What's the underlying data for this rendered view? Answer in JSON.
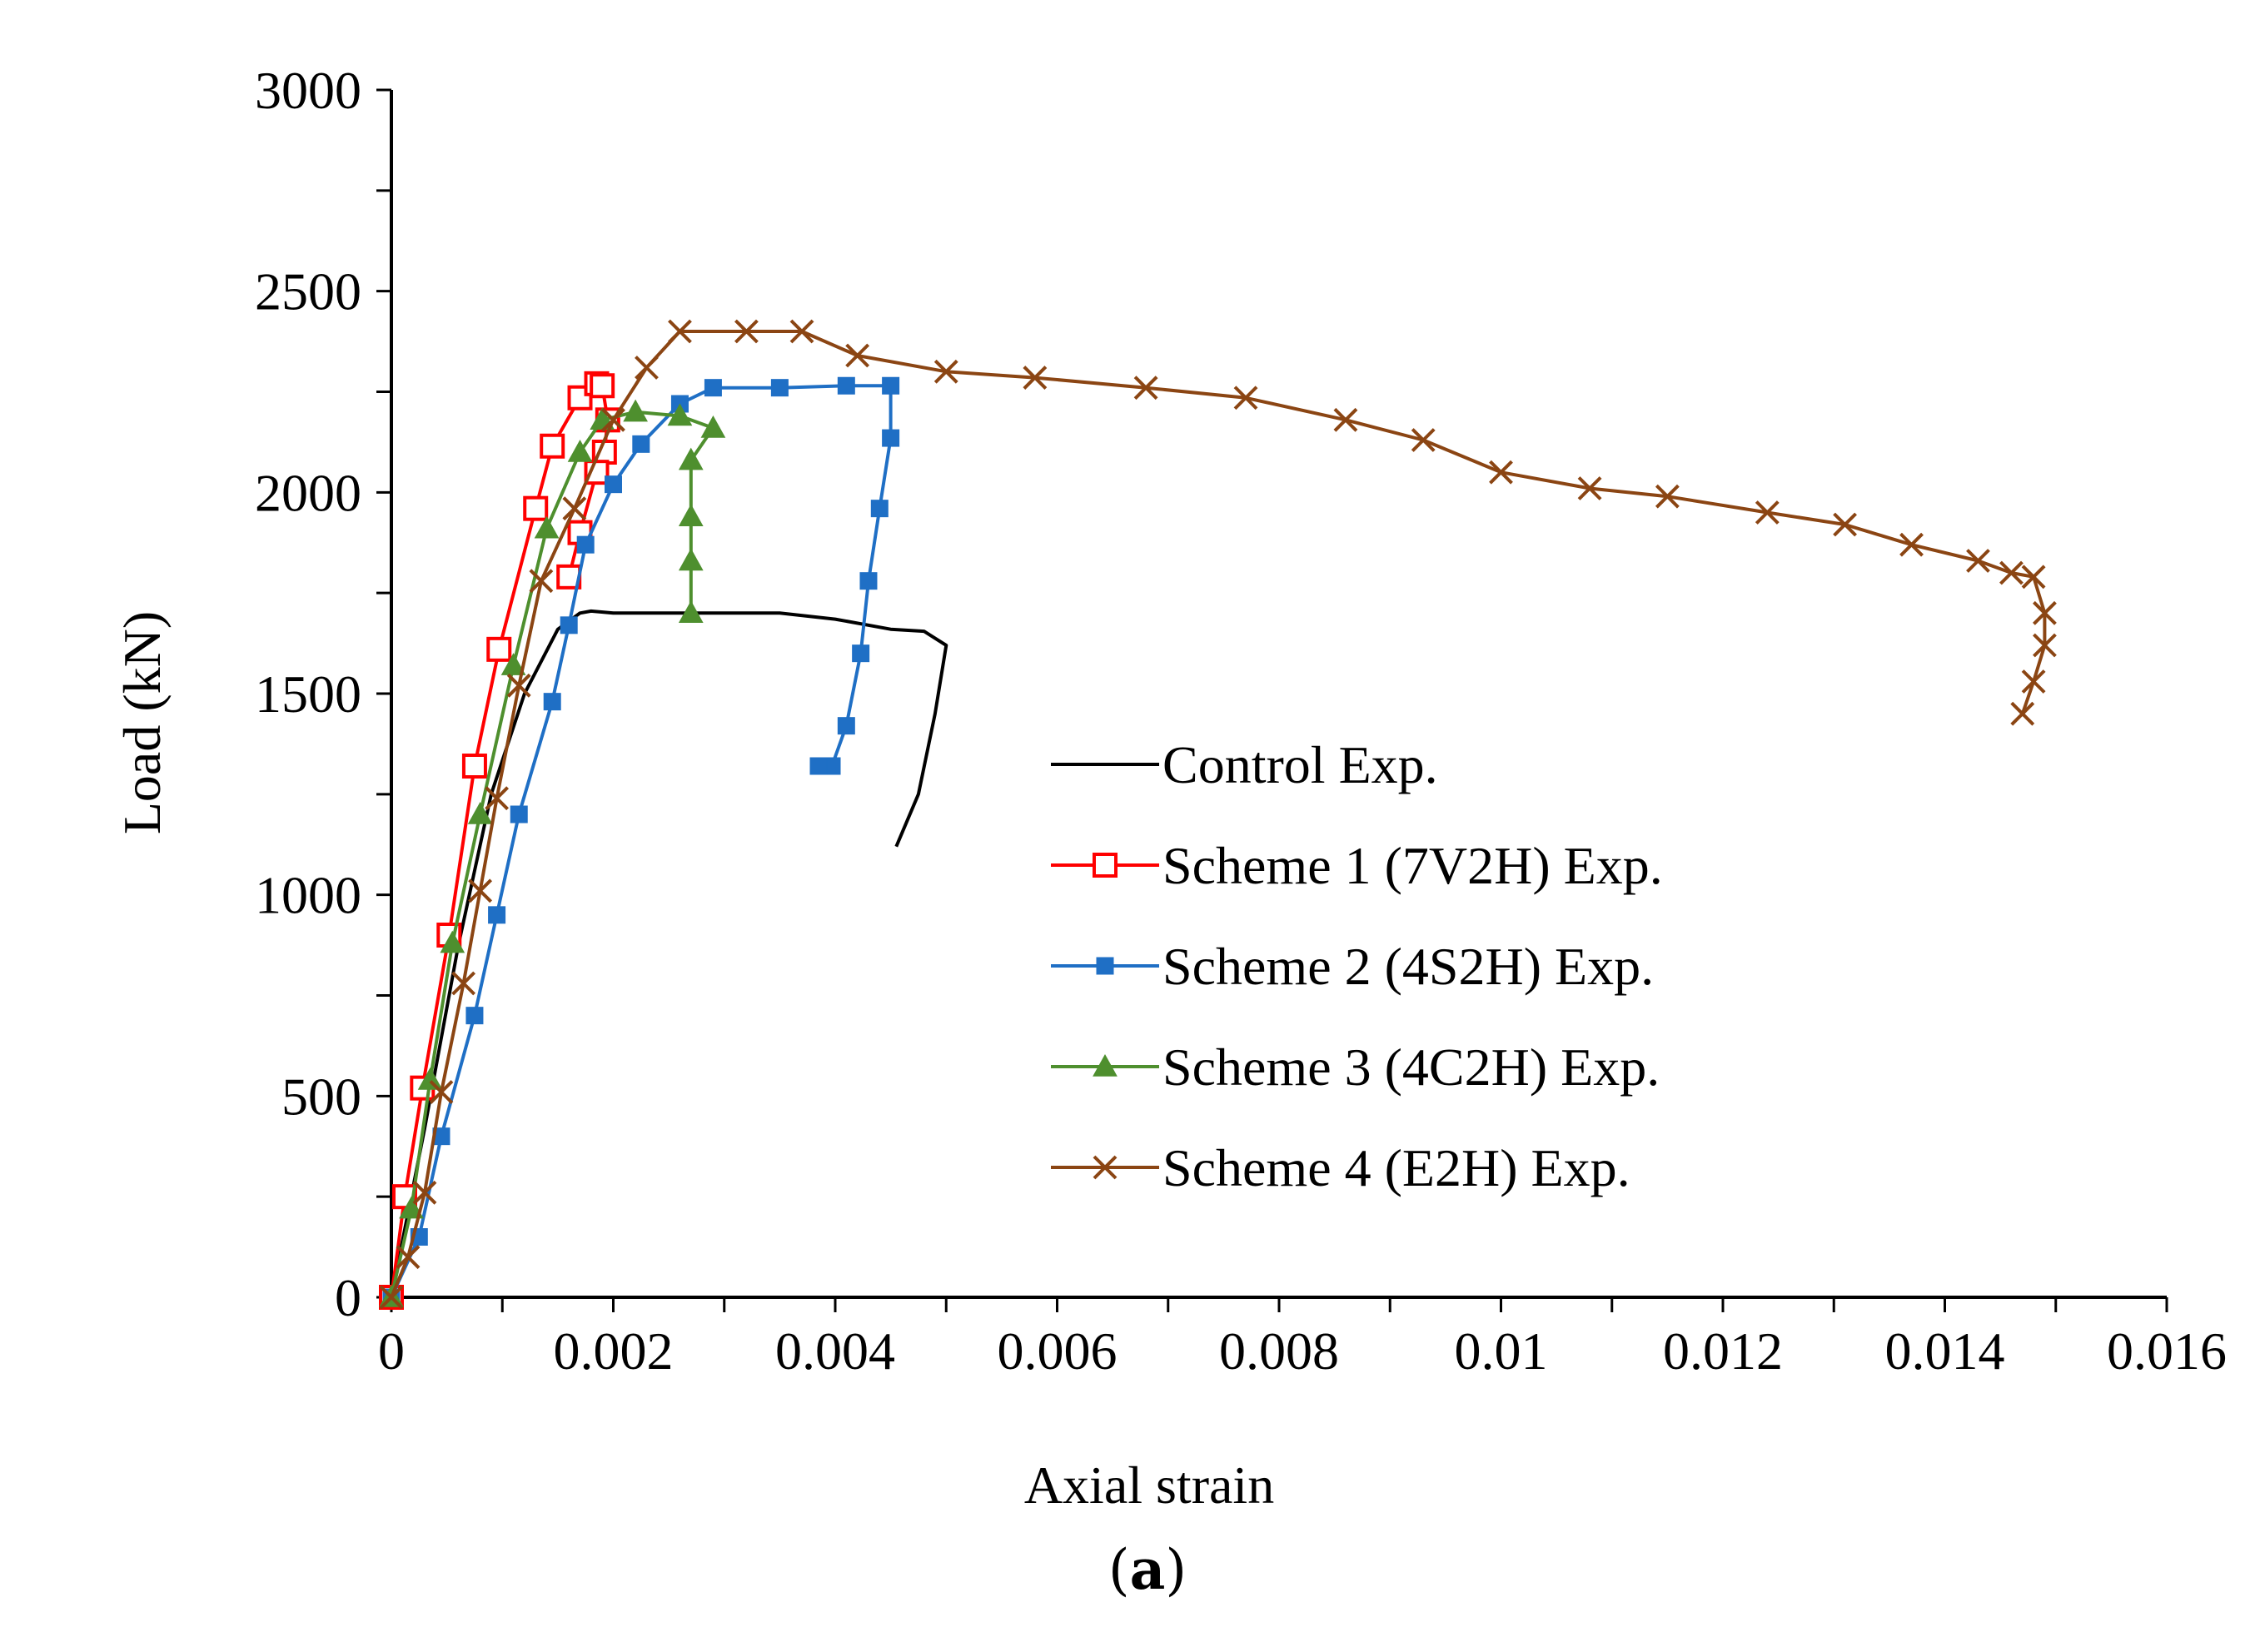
{
  "chart_data": {
    "type": "line",
    "title": "",
    "xlabel": "Axial strain",
    "ylabel": "Load (kN)",
    "caption_open": "(",
    "caption_letter": "a",
    "caption_close": ")",
    "xlim": [
      0,
      0.016
    ],
    "ylim": [
      0,
      3000
    ],
    "x_ticks": [
      0,
      0.002,
      0.004,
      0.006,
      0.008,
      0.01,
      0.012,
      0.014,
      0.016
    ],
    "x_tick_labels": [
      "0",
      "0.002",
      "0.004",
      "0.006",
      "0.008",
      "0.01",
      "0.012",
      "0.014",
      "0.016"
    ],
    "y_ticks": [
      0,
      500,
      1000,
      1500,
      2000,
      2500,
      3000
    ],
    "y_tick_labels": [
      "0",
      "500",
      "1000",
      "1500",
      "2000",
      "2500",
      "3000"
    ],
    "grid": false,
    "legend_position": "center-right",
    "series": [
      {
        "name": "Control Exp.",
        "color": "#000000",
        "marker": "none",
        "x": [
          0,
          0.0003,
          0.0006,
          0.0009,
          0.0012,
          0.0015,
          0.0017,
          0.0018,
          0.002,
          0.003,
          0.0035,
          0.004,
          0.0045,
          0.0048,
          0.005,
          0.0049,
          0.00475,
          0.00455
        ],
        "y": [
          0,
          420,
          870,
          1250,
          1500,
          1660,
          1700,
          1705,
          1700,
          1700,
          1700,
          1685,
          1660,
          1655,
          1620,
          1450,
          1250,
          1120
        ]
      },
      {
        "name": "Scheme 1 (7V2H) Exp.",
        "color": "#ff0000",
        "marker": "open-square",
        "x": [
          0,
          0.00012,
          0.00028,
          0.00052,
          0.00075,
          0.00097,
          0.0013,
          0.00145,
          0.0017,
          0.00185,
          0.0019,
          0.00195,
          0.00192,
          0.00185,
          0.0017,
          0.0016
        ],
        "y": [
          0,
          250,
          520,
          900,
          1320,
          1610,
          1960,
          2115,
          2235,
          2270,
          2265,
          2180,
          2100,
          2050,
          1900,
          1790
        ]
      },
      {
        "name": "Scheme 2 (4S2H) Exp.",
        "color": "#1f6fc5",
        "marker": "filled-square",
        "x": [
          0,
          0.00025,
          0.00045,
          0.00075,
          0.00095,
          0.00115,
          0.00145,
          0.0016,
          0.00175,
          0.002,
          0.00225,
          0.0026,
          0.0029,
          0.0035,
          0.0041,
          0.0045,
          0.0045,
          0.0044,
          0.0043,
          0.00423,
          0.0041,
          0.00397,
          0.00385
        ],
        "y": [
          0,
          150,
          400,
          700,
          950,
          1200,
          1480,
          1670,
          1870,
          2020,
          2120,
          2220,
          2260,
          2260,
          2265,
          2265,
          2135,
          1960,
          1780,
          1600,
          1420,
          1320,
          1320
        ]
      },
      {
        "name": "Scheme 3 (4C2H) Exp.",
        "color": "#4e8f2e",
        "marker": "filled-triangle",
        "x": [
          0,
          0.00018,
          0.00035,
          0.00055,
          0.0008,
          0.0011,
          0.0014,
          0.0017,
          0.0019,
          0.0022,
          0.0026,
          0.0029,
          0.0027,
          0.0027,
          0.0027,
          0.0027
        ],
        "y": [
          0,
          220,
          540,
          880,
          1200,
          1570,
          1910,
          2100,
          2180,
          2200,
          2190,
          2160,
          2080,
          1940,
          1830,
          1700
        ]
      },
      {
        "name": "Scheme 4 (E2H) Exp.",
        "color": "#8b4513",
        "marker": "cross",
        "x": [
          0,
          0.00015,
          0.0003,
          0.00045,
          0.00065,
          0.0008,
          0.00095,
          0.00115,
          0.00135,
          0.00165,
          0.002,
          0.0023,
          0.0026,
          0.0032,
          0.0037,
          0.0042,
          0.005,
          0.0058,
          0.0068,
          0.0077,
          0.0086,
          0.0093,
          0.01,
          0.0108,
          0.0115,
          0.0124,
          0.0131,
          0.0137,
          0.0143,
          0.0146,
          0.0148,
          0.0149,
          0.0149,
          0.0148,
          0.0147
        ],
        "y": [
          0,
          100,
          260,
          510,
          780,
          1010,
          1240,
          1520,
          1780,
          1960,
          2180,
          2310,
          2400,
          2400,
          2400,
          2340,
          2300,
          2285,
          2260,
          2235,
          2180,
          2130,
          2050,
          2010,
          1990,
          1950,
          1920,
          1870,
          1830,
          1800,
          1790,
          1700,
          1620,
          1530,
          1450
        ]
      }
    ]
  }
}
